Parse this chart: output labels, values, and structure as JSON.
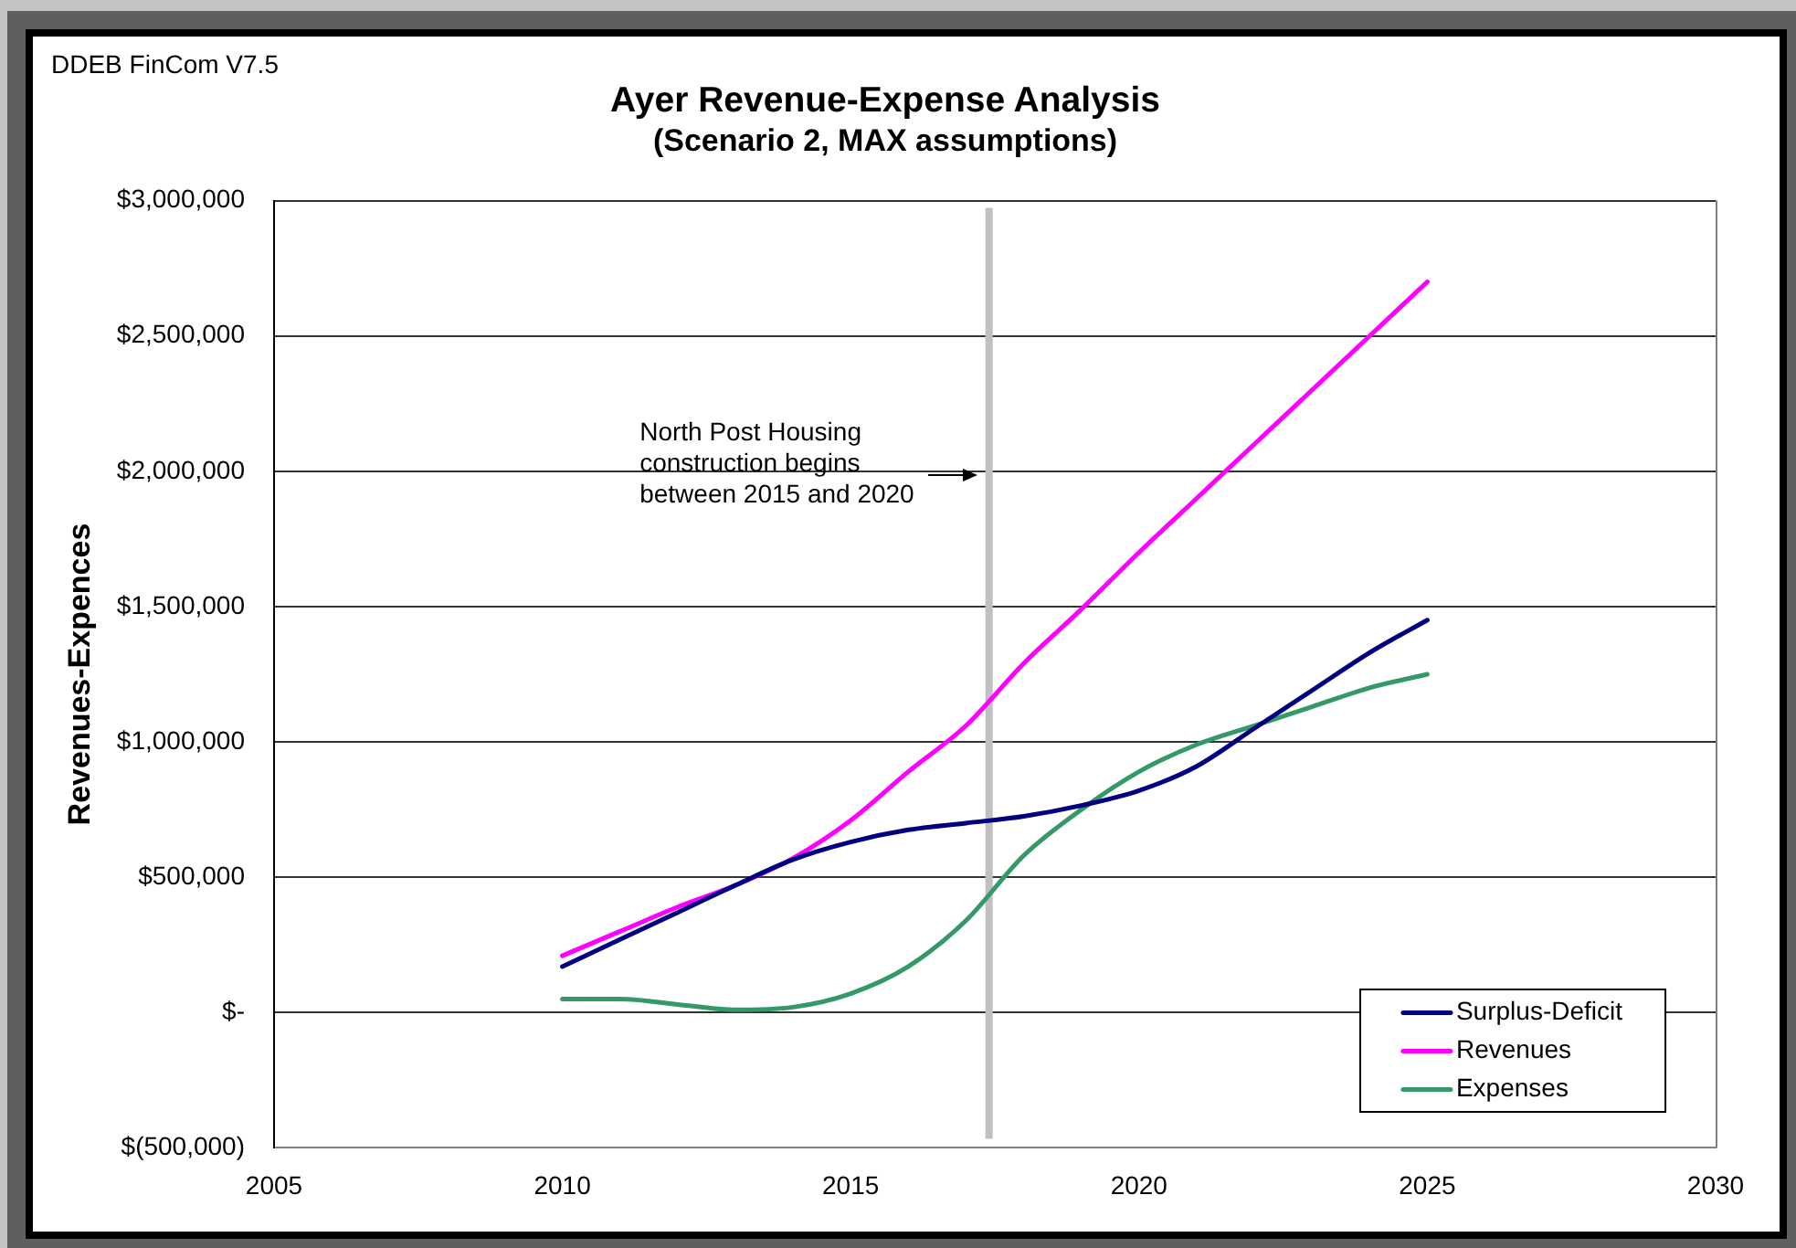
{
  "chart_data": {
    "type": "line",
    "title": "Ayer Revenue-Expense Analysis",
    "subtitle": "(Scenario 2, MAX assumptions)",
    "ylabel": "Revenues-Expences",
    "annotations": [
      "DDEB FinCom V7.5",
      "North Post Housing\nconstruction begins\nbetween 2015 and 2020"
    ],
    "x": [
      2010,
      2011,
      2012,
      2013,
      2014,
      2015,
      2016,
      2017,
      2018,
      2019,
      2020,
      2021,
      2022,
      2023,
      2024,
      2025
    ],
    "series": [
      {
        "name": "Surplus-Deficit",
        "color": "#000080",
        "values": [
          170000,
          270000,
          370000,
          470000,
          565000,
          630000,
          675000,
          700000,
          725000,
          765000,
          820000,
          910000,
          1050000,
          1190000,
          1330000,
          1450000
        ]
      },
      {
        "name": "Revenues",
        "color": "#ff00ff",
        "values": [
          210000,
          300000,
          390000,
          470000,
          570000,
          710000,
          890000,
          1060000,
          1290000,
          1490000,
          1700000,
          1900000,
          2100000,
          2300000,
          2500000,
          2700000
        ]
      },
      {
        "name": "Expenses",
        "color": "#339966",
        "values": [
          50000,
          50000,
          30000,
          10000,
          20000,
          70000,
          170000,
          340000,
          580000,
          750000,
          890000,
          990000,
          1060000,
          1130000,
          1200000,
          1250000
        ]
      }
    ],
    "xlim": [
      2005,
      2030
    ],
    "xticks": [
      2005,
      2010,
      2015,
      2020,
      2025,
      2030
    ],
    "ylim": [
      -500000,
      3000000
    ],
    "yticks": [
      {
        "value": -500000,
        "label": "$(500,000)"
      },
      {
        "value": 0,
        "label": "$-"
      },
      {
        "value": 500000,
        "label": "$500,000"
      },
      {
        "value": 1000000,
        "label": "$1,000,000"
      },
      {
        "value": 1500000,
        "label": "$1,500,000"
      },
      {
        "value": 2000000,
        "label": "$2,000,000"
      },
      {
        "value": 2500000,
        "label": "$2,500,000"
      },
      {
        "value": 3000000,
        "label": "$3,000,000"
      }
    ],
    "ref_lines": [
      {
        "axis": "x",
        "value": 2017.4,
        "color": "#c0c0c0"
      }
    ],
    "grid": "y",
    "legend": "bottom right",
    "marker": "none"
  }
}
